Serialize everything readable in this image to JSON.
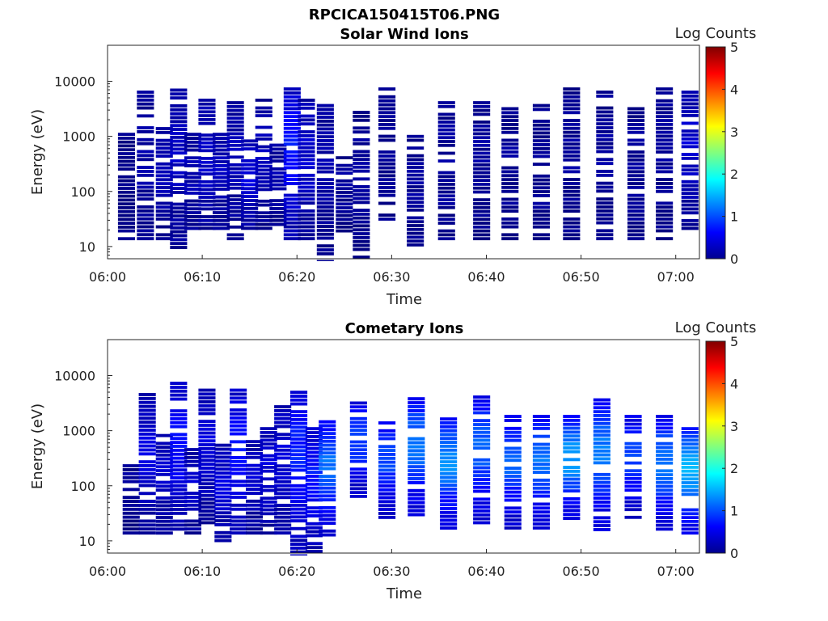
{
  "figure_title": "RPCICA150415T06.PNG",
  "colorbar_label": "Log Counts",
  "chart_data": [
    {
      "type": "heatmap",
      "title": "Solar Wind Ions",
      "xlabel": "Time",
      "ylabel": "Energy (eV)",
      "x_ticks": [
        "06:00",
        "06:10",
        "06:20",
        "06:30",
        "06:40",
        "06:50",
        "07:00"
      ],
      "y_ticks": [
        "10",
        "100",
        "1000",
        "10000"
      ],
      "y_scale": "log",
      "ylim": [
        6,
        45000
      ],
      "xlim_minutes": [
        0,
        62.5
      ],
      "colorbar_ticks": [
        "0",
        "1",
        "2",
        "3",
        "4",
        "5"
      ],
      "clim": [
        0,
        5
      ],
      "columns": [
        {
          "t": 2.0,
          "lo": 13,
          "hi": 1200,
          "c": 0.05
        },
        {
          "t": 4.0,
          "lo": 13,
          "hi": 7000,
          "c": 0.15
        },
        {
          "t": 6.0,
          "lo": 13,
          "hi": 1800,
          "c": 0.2
        },
        {
          "t": 7.5,
          "lo": 9,
          "hi": 9000,
          "c": 0.25
        },
        {
          "t": 9.0,
          "lo": 20,
          "hi": 1200,
          "c": 0.2
        },
        {
          "t": 10.5,
          "lo": 20,
          "hi": 5000,
          "c": 0.3
        },
        {
          "t": 12.0,
          "lo": 20,
          "hi": 1200,
          "c": 0.25
        },
        {
          "t": 13.5,
          "lo": 13,
          "hi": 4500,
          "c": 0.2
        },
        {
          "t": 15.0,
          "lo": 20,
          "hi": 1500,
          "c": 0.35
        },
        {
          "t": 16.5,
          "lo": 20,
          "hi": 5000,
          "c": 0.2
        },
        {
          "t": 18.0,
          "lo": 20,
          "hi": 900,
          "c": 0.2
        },
        {
          "t": 19.5,
          "lo": 13,
          "hi": 8000,
          "c": 0.55
        },
        {
          "t": 21.0,
          "lo": 13,
          "hi": 5000,
          "c": 0.3
        },
        {
          "t": 23.0,
          "lo": 5,
          "hi": 4000,
          "c": 0.15
        },
        {
          "t": 25.0,
          "lo": 18,
          "hi": 450,
          "c": 0.1
        },
        {
          "t": 26.8,
          "lo": 6,
          "hi": 3000,
          "c": 0.1
        },
        {
          "t": 29.5,
          "lo": 25,
          "hi": 8000,
          "c": 0.1
        },
        {
          "t": 32.5,
          "lo": 10,
          "hi": 1100,
          "c": 0.1
        },
        {
          "t": 35.8,
          "lo": 13,
          "hi": 4500,
          "c": 0.1
        },
        {
          "t": 39.5,
          "lo": 13,
          "hi": 4500,
          "c": 0.1
        },
        {
          "t": 42.5,
          "lo": 13,
          "hi": 3500,
          "c": 0.1
        },
        {
          "t": 45.8,
          "lo": 13,
          "hi": 4000,
          "c": 0.1
        },
        {
          "t": 49.0,
          "lo": 13,
          "hi": 8000,
          "c": 0.1
        },
        {
          "t": 52.5,
          "lo": 13,
          "hi": 7000,
          "c": 0.1
        },
        {
          "t": 55.8,
          "lo": 13,
          "hi": 3500,
          "c": 0.1
        },
        {
          "t": 58.8,
          "lo": 13,
          "hi": 8000,
          "c": 0.1
        },
        {
          "t": 61.5,
          "lo": 20,
          "hi": 7000,
          "c": 0.3
        }
      ]
    },
    {
      "type": "heatmap",
      "title": "Cometary Ions",
      "xlabel": "Time",
      "ylabel": "Energy (eV)",
      "x_ticks": [
        "06:00",
        "06:10",
        "06:20",
        "06:30",
        "06:40",
        "06:50",
        "07:00"
      ],
      "y_ticks": [
        "10",
        "100",
        "1000",
        "10000"
      ],
      "y_scale": "log",
      "ylim": [
        6,
        45000
      ],
      "xlim_minutes": [
        0,
        62.5
      ],
      "colorbar_ticks": [
        "0",
        "1",
        "2",
        "3",
        "4",
        "5"
      ],
      "clim": [
        0,
        5
      ],
      "columns": [
        {
          "t": 2.5,
          "lo": 13,
          "hi": 300,
          "c": 0.1
        },
        {
          "t": 4.2,
          "lo": 13,
          "hi": 5000,
          "c": 0.35
        },
        {
          "t": 6.0,
          "lo": 13,
          "hi": 900,
          "c": 0.3
        },
        {
          "t": 7.5,
          "lo": 13,
          "hi": 8000,
          "c": 0.5
        },
        {
          "t": 9.0,
          "lo": 13,
          "hi": 500,
          "c": 0.3
        },
        {
          "t": 10.5,
          "lo": 20,
          "hi": 6000,
          "c": 0.35
        },
        {
          "t": 12.2,
          "lo": 8,
          "hi": 600,
          "c": 0.35
        },
        {
          "t": 13.8,
          "lo": 13,
          "hi": 6000,
          "c": 0.55
        },
        {
          "t": 15.5,
          "lo": 13,
          "hi": 700,
          "c": 0.3
        },
        {
          "t": 17.0,
          "lo": 13,
          "hi": 1200,
          "c": 0.35
        },
        {
          "t": 18.5,
          "lo": 13,
          "hi": 3000,
          "c": 0.35
        },
        {
          "t": 20.2,
          "lo": 5,
          "hi": 5500,
          "c": 0.6
        },
        {
          "t": 21.8,
          "lo": 6,
          "hi": 1200,
          "c": 0.55
        },
        {
          "t": 23.2,
          "lo": 12,
          "hi": 1600,
          "c": 0.9
        },
        {
          "t": 26.5,
          "lo": 60,
          "hi": 3500,
          "c": 0.75
        },
        {
          "t": 29.5,
          "lo": 25,
          "hi": 1800,
          "c": 0.75
        },
        {
          "t": 32.6,
          "lo": 28,
          "hi": 4200,
          "c": 0.95
        },
        {
          "t": 36.0,
          "lo": 16,
          "hi": 1800,
          "c": 1.0
        },
        {
          "t": 39.5,
          "lo": 20,
          "hi": 4500,
          "c": 0.85
        },
        {
          "t": 42.8,
          "lo": 16,
          "hi": 2000,
          "c": 0.85
        },
        {
          "t": 45.8,
          "lo": 16,
          "hi": 2000,
          "c": 0.9
        },
        {
          "t": 49.0,
          "lo": 24,
          "hi": 2000,
          "c": 1.1
        },
        {
          "t": 52.2,
          "lo": 15,
          "hi": 4000,
          "c": 0.95
        },
        {
          "t": 55.5,
          "lo": 25,
          "hi": 2000,
          "c": 0.75
        },
        {
          "t": 58.8,
          "lo": 13,
          "hi": 2000,
          "c": 0.9
        },
        {
          "t": 61.5,
          "lo": 13,
          "hi": 1200,
          "c": 1.15
        }
      ]
    }
  ]
}
